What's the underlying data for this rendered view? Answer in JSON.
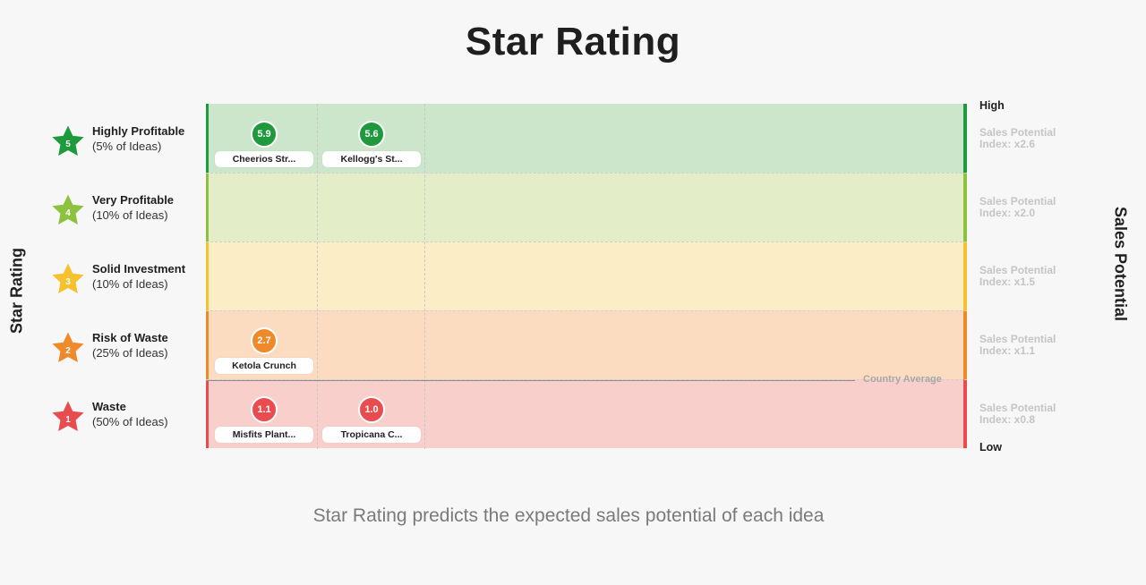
{
  "title": "Star Rating",
  "y_axis_title": "Star Rating",
  "right_axis_title": "Sales Potential",
  "footer": "Star Rating predicts the expected sales potential of each idea",
  "country_average_label": "Country Average",
  "high_label": "High",
  "low_label": "Low",
  "colors": {
    "5": "#1e9a3c",
    "4": "#8cc23f",
    "3": "#f5c12e",
    "2": "#ef8a2a",
    "1": "#e84c4f"
  },
  "ratings": [
    {
      "stars": "5",
      "name": "Highly Profitable",
      "share": "(5% of Ideas)",
      "index": "Sales Potential Index: x2.6",
      "color": "#1e9a3c",
      "band_color": "#cce6cc"
    },
    {
      "stars": "4",
      "name": "Very Profitable",
      "share": "(10% of Ideas)",
      "index": "Sales Potential Index: x2.0",
      "color": "#8cc23f",
      "band_color": "#e3eec9"
    },
    {
      "stars": "3",
      "name": "Solid Investment",
      "share": "(10% of Ideas)",
      "index": "Sales Potential Index: x1.5",
      "color": "#f5c12e",
      "band_color": "#fbedc6"
    },
    {
      "stars": "2",
      "name": "Risk of Waste",
      "share": "(25% of Ideas)",
      "index": "Sales Potential Index: x1.1",
      "color": "#ef8a2a",
      "band_color": "#fbdcc0"
    },
    {
      "stars": "1",
      "name": "Waste",
      "share": "(50% of Ideas)",
      "index": "Sales Potential Index: x0.8",
      "color": "#e84c4f",
      "band_color": "#f9cfcb"
    }
  ],
  "chart_data": {
    "type": "scatter",
    "title": "Star Rating",
    "ylabel": "Star Rating",
    "y2label": "Sales Potential",
    "y_categories": [
      "5",
      "4",
      "3",
      "2",
      "1"
    ],
    "country_average": "Country Average",
    "points": [
      {
        "name": "Cheerios Str...",
        "score": "5.9",
        "rating": "5",
        "column": 1
      },
      {
        "name": "Kellogg's St...",
        "score": "5.6",
        "rating": "5",
        "column": 2
      },
      {
        "name": "Ketola Crunch",
        "score": "2.7",
        "rating": "2",
        "column": 1
      },
      {
        "name": "Misfits Plant...",
        "score": "1.1",
        "rating": "1",
        "column": 1
      },
      {
        "name": "Tropicana C...",
        "score": "1.0",
        "rating": "1",
        "column": 2
      }
    ],
    "legend": "left"
  }
}
